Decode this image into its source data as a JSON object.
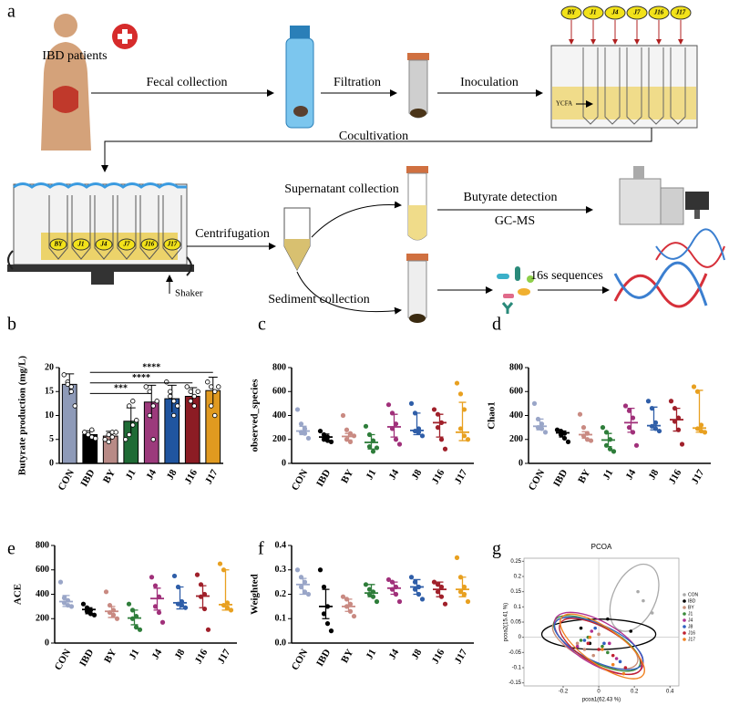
{
  "diagram": {
    "label": "a",
    "patients": "IBD patients",
    "fecal": "Fecal collection",
    "filtration": "Filtration",
    "inoculation": "Inoculation",
    "medium": "YCFA",
    "tubes_top": [
      "BY",
      "J1",
      "J4",
      "J7",
      "J16",
      "J17"
    ],
    "cocultivation": "Cocultivation",
    "tubes_plate": [
      "BY",
      "J1",
      "J4",
      "J7",
      "J16",
      "J17"
    ],
    "shaker": "Shaker",
    "centrifugation": "Centrifugation",
    "supernatant": "Supernatant collection",
    "sediment": "Sediment collection",
    "detection": "Butyrate detection",
    "method": "GC-MS",
    "sequencing": "16s sequences"
  },
  "chart_data": [
    {
      "type": "bar",
      "label": "b",
      "y_label": "Butyrate production (mg/L)",
      "categories": [
        "CON",
        "IBD",
        "BY",
        "J1",
        "J4",
        "J8",
        "J16",
        "J17"
      ],
      "values": [
        16.5,
        6,
        5.7,
        8.8,
        12.8,
        13.5,
        14,
        15.2
      ],
      "errors": [
        2.2,
        0.8,
        1,
        2.8,
        3.5,
        2.8,
        1.8,
        2.8
      ],
      "points": [
        [
          18.5,
          17,
          16,
          16.5,
          15,
          12
        ],
        [
          6.5,
          6,
          5.5,
          6,
          7,
          5.2
        ],
        [
          5,
          6,
          6.5,
          4.5,
          5.5,
          6.5
        ],
        [
          5,
          6,
          8,
          12,
          13,
          9
        ],
        [
          16,
          15,
          12,
          10,
          5,
          13
        ],
        [
          17,
          14,
          13,
          15,
          10,
          12
        ],
        [
          16,
          15,
          14,
          13,
          12,
          15
        ],
        [
          17,
          16,
          15,
          12,
          10,
          16
        ]
      ],
      "colors": [
        "#8e9ab8",
        "#000000",
        "#b88a86",
        "#1f6b35",
        "#9c3a7c",
        "#2055a0",
        "#8c1c24",
        "#e09a20"
      ],
      "ylim": [
        0,
        20
      ],
      "yticks": [
        0,
        5,
        10,
        15,
        20
      ],
      "annotations": [
        {
          "text": "****",
          "from": "IBD",
          "to": "J17",
          "y": 19
        },
        {
          "text": "****",
          "from": "IBD",
          "to": "J16",
          "y": 16.8
        },
        {
          "text": "***",
          "from": "IBD",
          "to": "J4",
          "y": 14.6
        }
      ]
    },
    {
      "type": "strip",
      "label": "c",
      "y_label": "observed_species",
      "categories": [
        "CON",
        "IBD",
        "BY",
        "J1",
        "J4",
        "J8",
        "J16",
        "J17"
      ],
      "colors": [
        "#9aa6c8",
        "#000000",
        "#c98a82",
        "#2e7d3a",
        "#a0307a",
        "#2f5ea8",
        "#a0202a",
        "#e8a020"
      ],
      "points": [
        [
          450,
          330,
          290,
          260,
          250,
          210
        ],
        [
          270,
          240,
          220,
          200,
          190,
          180
        ],
        [
          400,
          280,
          250,
          200,
          180,
          230
        ],
        [
          310,
          240,
          190,
          140,
          100,
          130
        ],
        [
          490,
          420,
          330,
          290,
          200,
          160
        ],
        [
          500,
          420,
          290,
          270,
          260,
          230
        ],
        [
          450,
          410,
          340,
          300,
          200,
          120
        ],
        [
          670,
          580,
          450,
          290,
          230,
          200
        ]
      ],
      "medians": [
        270,
        220,
        225,
        175,
        305,
        275,
        340,
        260
      ],
      "q1": [
        240,
        195,
        195,
        120,
        220,
        240,
        220,
        190
      ],
      "q3": [
        310,
        245,
        250,
        240,
        410,
        420,
        410,
        510
      ],
      "ylim": [
        0,
        800
      ],
      "yticks": [
        0,
        200,
        400,
        600,
        800
      ]
    },
    {
      "type": "strip",
      "label": "d",
      "y_label": "Chao1",
      "categories": [
        "CON",
        "IBD",
        "BY",
        "J1",
        "J4",
        "J8",
        "J16",
        "J17"
      ],
      "colors": [
        "#9aa6c8",
        "#000000",
        "#c98a82",
        "#2e7d3a",
        "#a0307a",
        "#2f5ea8",
        "#a0202a",
        "#e8a020"
      ],
      "points": [
        [
          500,
          370,
          330,
          300,
          290,
          260
        ],
        [
          280,
          270,
          250,
          240,
          210,
          180
        ],
        [
          410,
          300,
          250,
          230,
          200,
          190
        ],
        [
          300,
          260,
          200,
          150,
          120,
          100
        ],
        [
          480,
          440,
          380,
          300,
          260,
          150
        ],
        [
          520,
          460,
          340,
          310,
          290,
          270
        ],
        [
          520,
          460,
          380,
          350,
          280,
          160
        ],
        [
          640,
          600,
          320,
          290,
          270,
          260
        ]
      ],
      "medians": [
        310,
        255,
        240,
        195,
        340,
        315,
        365,
        295
      ],
      "q1": [
        280,
        220,
        210,
        140,
        260,
        280,
        270,
        260
      ],
      "q3": [
        370,
        270,
        265,
        250,
        460,
        470,
        460,
        610
      ],
      "ylim": [
        0,
        800
      ],
      "yticks": [
        0,
        200,
        400,
        600,
        800
      ]
    },
    {
      "type": "strip",
      "label": "e",
      "y_label": "ACE",
      "categories": [
        "CON",
        "IBD",
        "BY",
        "J1",
        "J4",
        "J8",
        "J16",
        "J17"
      ],
      "colors": [
        "#9aa6c8",
        "#000000",
        "#c98a82",
        "#2e7d3a",
        "#a0307a",
        "#2f5ea8",
        "#a0202a",
        "#e8a020"
      ],
      "points": [
        [
          500,
          370,
          350,
          330,
          310,
          300
        ],
        [
          320,
          290,
          270,
          260,
          240,
          230
        ],
        [
          420,
          310,
          270,
          250,
          230,
          200
        ],
        [
          320,
          270,
          220,
          200,
          130,
          110
        ],
        [
          540,
          470,
          380,
          300,
          250,
          170
        ],
        [
          550,
          460,
          340,
          320,
          310,
          290
        ],
        [
          560,
          480,
          400,
          380,
          280,
          110
        ],
        [
          650,
          600,
          330,
          310,
          290,
          270
        ]
      ],
      "medians": [
        340,
        275,
        260,
        205,
        365,
        330,
        385,
        315
      ],
      "q1": [
        300,
        240,
        210,
        150,
        270,
        280,
        290,
        270
      ],
      "q3": [
        390,
        290,
        300,
        270,
        450,
        460,
        470,
        600
      ],
      "ylim": [
        0,
        800
      ],
      "yticks": [
        0,
        200,
        400,
        600,
        800
      ]
    },
    {
      "type": "strip",
      "label": "f",
      "y_label": "Weighted",
      "categories": [
        "CON",
        "IBD",
        "BY",
        "J1",
        "J4",
        "J8",
        "J16",
        "J17"
      ],
      "colors": [
        "#9aa6c8",
        "#000000",
        "#c98a82",
        "#2e7d3a",
        "#a0307a",
        "#2f5ea8",
        "#a0202a",
        "#e8a020"
      ],
      "points": [
        [
          0.3,
          0.27,
          0.25,
          0.23,
          0.21,
          0.2
        ],
        [
          0.3,
          0.23,
          0.15,
          0.12,
          0.08,
          0.05
        ],
        [
          0.19,
          0.18,
          0.16,
          0.15,
          0.13,
          0.11
        ],
        [
          0.24,
          0.22,
          0.21,
          0.2,
          0.19,
          0.17
        ],
        [
          0.26,
          0.25,
          0.23,
          0.22,
          0.2,
          0.17
        ],
        [
          0.27,
          0.25,
          0.23,
          0.22,
          0.2,
          0.18
        ],
        [
          0.25,
          0.24,
          0.23,
          0.21,
          0.19,
          0.16
        ],
        [
          0.35,
          0.27,
          0.23,
          0.21,
          0.2,
          0.17
        ]
      ],
      "medians": [
        0.24,
        0.15,
        0.15,
        0.205,
        0.225,
        0.23,
        0.22,
        0.22
      ],
      "q1": [
        0.2,
        0.1,
        0.13,
        0.19,
        0.2,
        0.2,
        0.19,
        0.19
      ],
      "q3": [
        0.265,
        0.22,
        0.18,
        0.24,
        0.25,
        0.26,
        0.25,
        0.27
      ],
      "ylim": [
        0,
        0.4
      ],
      "yticks": [
        {
          "value": 0,
          "label": "0.0"
        },
        0.1,
        0.2,
        0.3,
        0.4
      ]
    },
    {
      "type": "scatter",
      "label": "g",
      "title": "PCOA",
      "x_label": "pcoa1(62.43 %)",
      "y_label": "pcoa2(15.41 %)",
      "xlim": [
        -0.42,
        0.45
      ],
      "xticks": [
        -0.2,
        0,
        0.2,
        0.4
      ],
      "ylim": [
        -0.16,
        0.26
      ],
      "yticks": [
        -0.15,
        -0.1,
        -0.05,
        0,
        0.05,
        0.1,
        0.15,
        0.2,
        0.25
      ],
      "series": [
        {
          "name": "CON",
          "color": "#aaaaaa",
          "x": [
            0.22,
            0.25,
            0.3,
            0.12
          ],
          "y": [
            0.15,
            0.12,
            0.08,
            0.02
          ],
          "ellipse": [
            0.2,
            0.13,
            0.2,
            0.07,
            65
          ]
        },
        {
          "name": "IBD",
          "color": "#000000",
          "x": [
            -0.1,
            0.05,
            0.18,
            -0.05
          ],
          "y": [
            0.03,
            0.06,
            0.02,
            -0.02
          ],
          "ellipse": [
            0,
            0.01,
            0.32,
            0.05,
            0
          ]
        },
        {
          "name": "BY",
          "color": "#c9907a",
          "x": [
            -0.12,
            -0.08,
            0.0,
            -0.03
          ],
          "y": [
            -0.02,
            -0.04,
            0.01,
            -0.06
          ],
          "ellipse": [
            -0.02,
            -0.02,
            0.26,
            0.06,
            -25
          ]
        },
        {
          "name": "J1",
          "color": "#3a8a3a",
          "x": [
            -0.06,
            0.02,
            -0.1,
            0.05
          ],
          "y": [
            0.0,
            -0.03,
            -0.01,
            -0.05
          ],
          "ellipse": [
            -0.01,
            -0.02,
            0.27,
            0.06,
            -28
          ]
        },
        {
          "name": "J4",
          "color": "#b03090",
          "x": [
            -0.04,
            0.06,
            -0.12,
            0.1
          ],
          "y": [
            0.02,
            -0.02,
            -0.03,
            -0.07
          ],
          "ellipse": [
            0,
            -0.02,
            0.28,
            0.07,
            -30
          ]
        },
        {
          "name": "J8",
          "color": "#3060c0",
          "x": [
            -0.08,
            0.03,
            0.12,
            -0.02
          ],
          "y": [
            -0.01,
            -0.02,
            -0.08,
            0.03
          ],
          "ellipse": [
            0,
            -0.02,
            0.27,
            0.06,
            -25
          ]
        },
        {
          "name": "J16",
          "color": "#c02030",
          "x": [
            0.0,
            -0.06,
            0.15,
            0.08
          ],
          "y": [
            -0.04,
            -0.02,
            -0.1,
            -0.06
          ],
          "ellipse": [
            0.01,
            -0.03,
            0.26,
            0.06,
            -30
          ]
        },
        {
          "name": "J17",
          "color": "#f08020",
          "x": [
            0.14,
            -0.05,
            0.08,
            0.02
          ],
          "y": [
            -0.12,
            0.0,
            -0.09,
            -0.04
          ],
          "ellipse": [
            0.02,
            -0.03,
            0.28,
            0.06,
            -35
          ]
        }
      ]
    }
  ]
}
